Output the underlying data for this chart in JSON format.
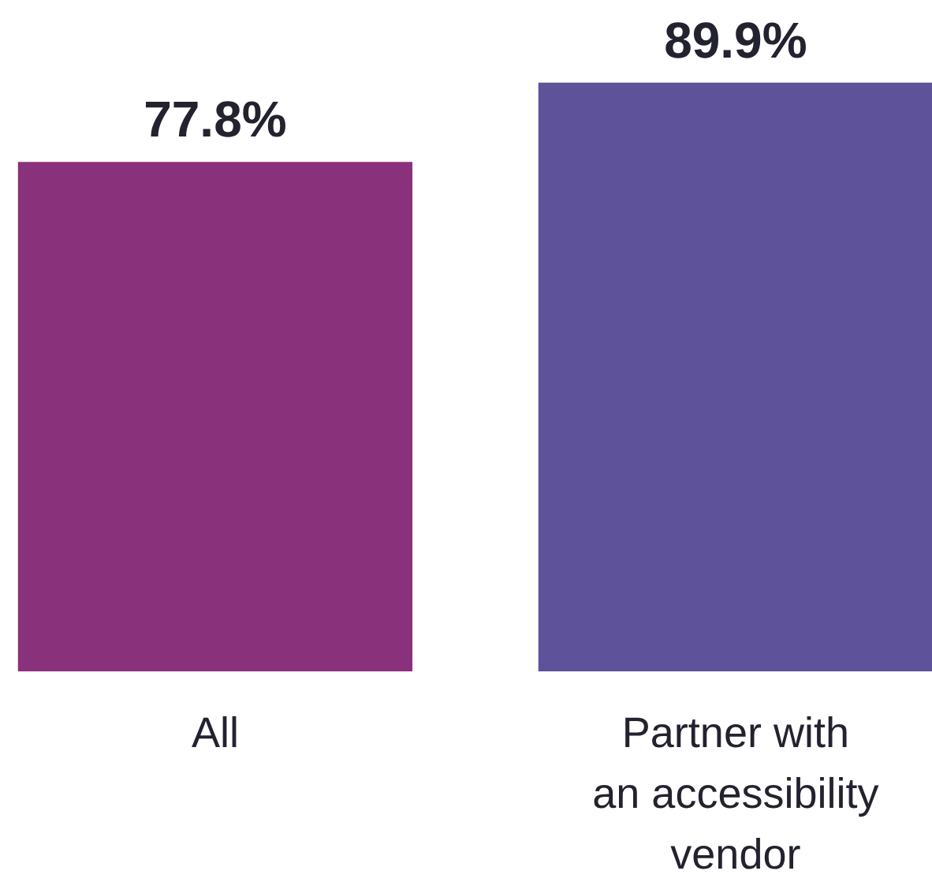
{
  "chart_data": {
    "type": "bar",
    "categories": [
      "All",
      "Partner with an accessibility vendor"
    ],
    "values": [
      77.8,
      89.9
    ],
    "colors": [
      "#8a317c",
      "#5e529b"
    ],
    "value_labels": [
      "77.8%",
      "89.9%"
    ]
  }
}
